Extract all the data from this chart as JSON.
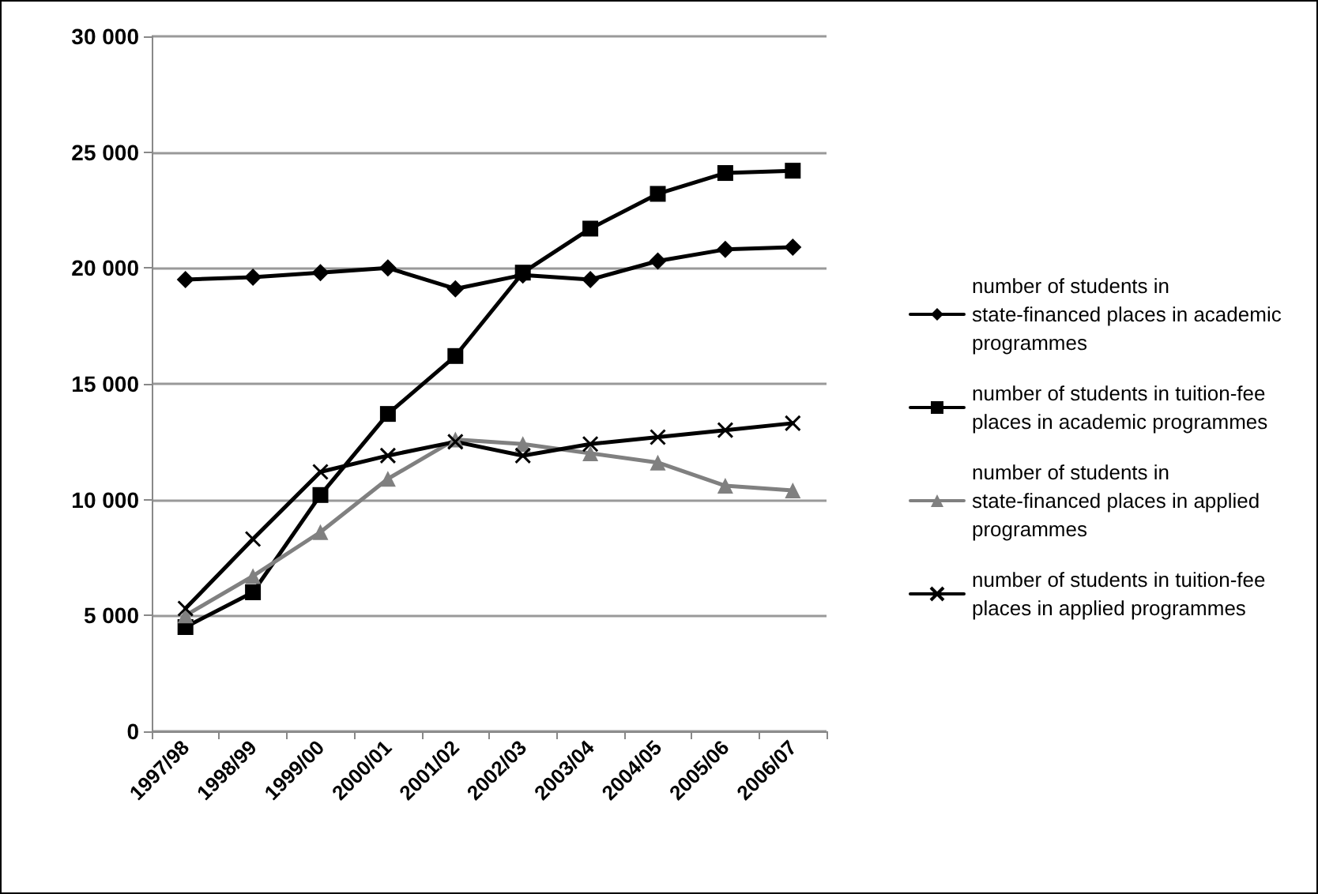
{
  "chart_data": {
    "type": "line",
    "categories": [
      "1997/98",
      "1998/99",
      "1999/00",
      "2000/01",
      "2001/02",
      "2002/03",
      "2003/04",
      "2004/05",
      "2005/06",
      "2006/07"
    ],
    "series": [
      {
        "name": "number of students in state-financed places in academic programmes",
        "color": "#000000",
        "marker": "diamond",
        "values": [
          19500,
          19600,
          19800,
          20000,
          19100,
          19700,
          19500,
          20300,
          20800,
          20900
        ]
      },
      {
        "name": "number of students in tuition-fee places in academic programmes",
        "color": "#000000",
        "marker": "square",
        "values": [
          4500,
          6000,
          10200,
          13700,
          16200,
          19800,
          21700,
          23200,
          24100,
          24200
        ]
      },
      {
        "name": "number of students in state-financed places in applied programmes",
        "color": "#808080",
        "marker": "triangle",
        "values": [
          5000,
          6700,
          8600,
          10900,
          12600,
          12400,
          12000,
          11600,
          10600,
          10400
        ]
      },
      {
        "name": "number of students in tuition-fee places in applied programmes",
        "color": "#000000",
        "marker": "cross",
        "values": [
          5300,
          8300,
          11200,
          11900,
          12500,
          11900,
          12400,
          12700,
          13000,
          13300
        ]
      }
    ],
    "ylim": [
      0,
      30000
    ],
    "yticks": [
      0,
      {
        "value": 5000,
        "label": "5 000"
      },
      {
        "value": 10000,
        "label": "10 000"
      },
      {
        "value": 15000,
        "label": "15 000"
      },
      {
        "value": 20000,
        "label": "20 000"
      },
      {
        "value": 25000,
        "label": "25 000"
      },
      {
        "value": 30000,
        "label": "30 000"
      }
    ],
    "grid": "y",
    "legend": "right",
    "line_style": "solid"
  }
}
